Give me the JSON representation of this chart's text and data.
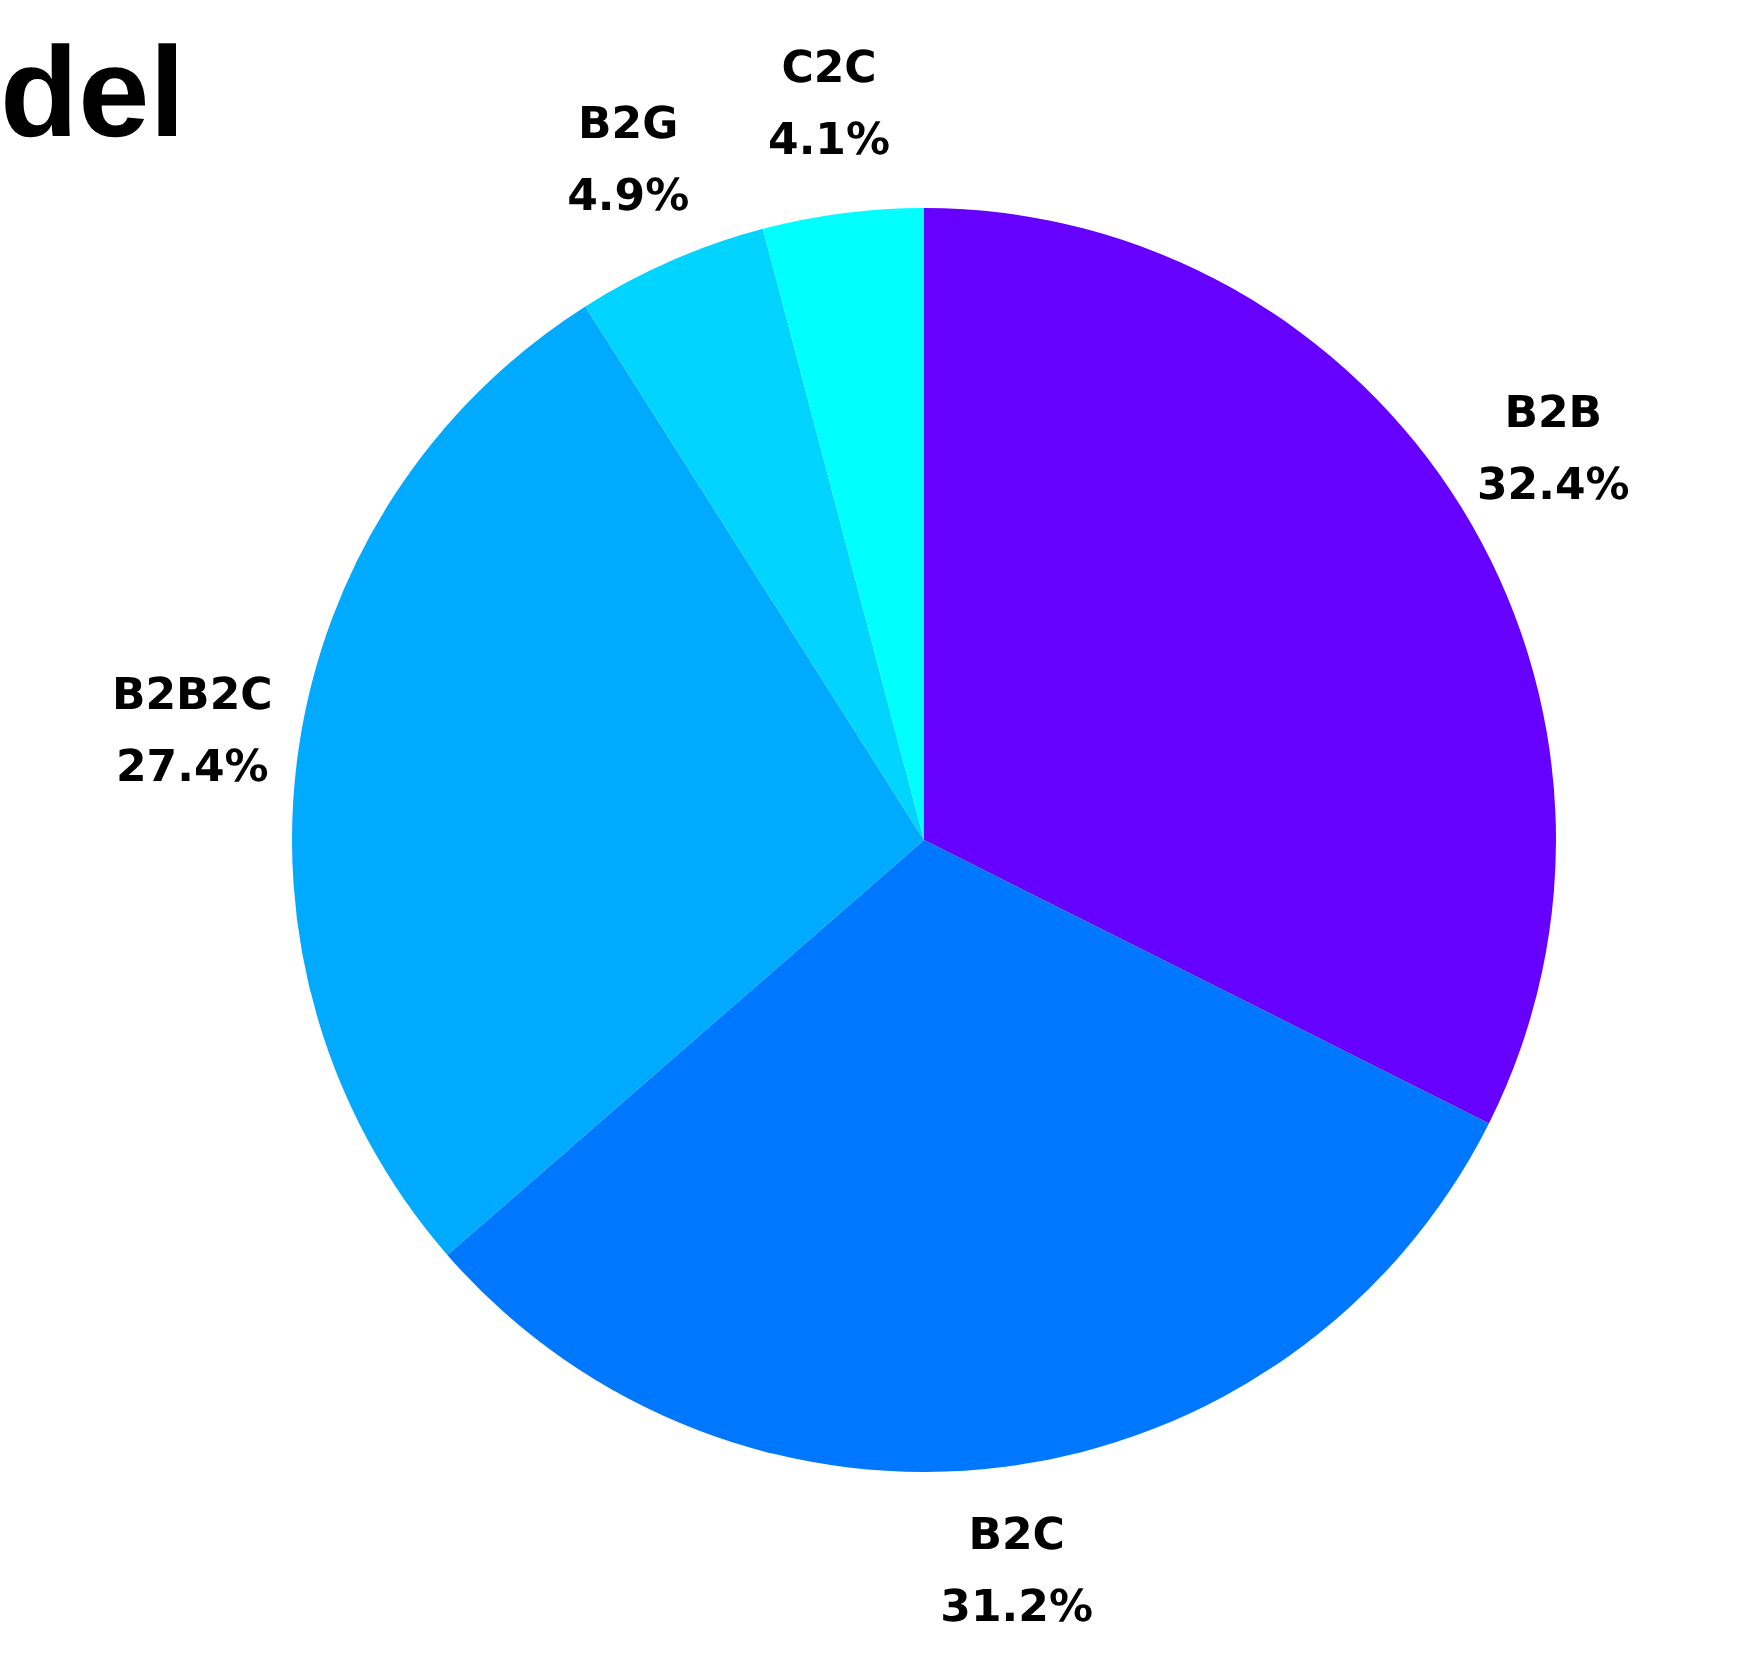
{
  "chart_data": {
    "type": "pie",
    "title": "del",
    "categories": [
      "B2B",
      "B2C",
      "B2B2C",
      "B2G",
      "C2C"
    ],
    "values": [
      32.4,
      31.2,
      27.4,
      4.9,
      4.1
    ],
    "value_labels": [
      "32.4%",
      "31.2%",
      "27.4%",
      "4.9%",
      "4.1%"
    ],
    "colors": [
      "#6600ff",
      "#0077ff",
      "#00aaff",
      "#00d4ff",
      "#00ffff"
    ],
    "legend": false
  }
}
